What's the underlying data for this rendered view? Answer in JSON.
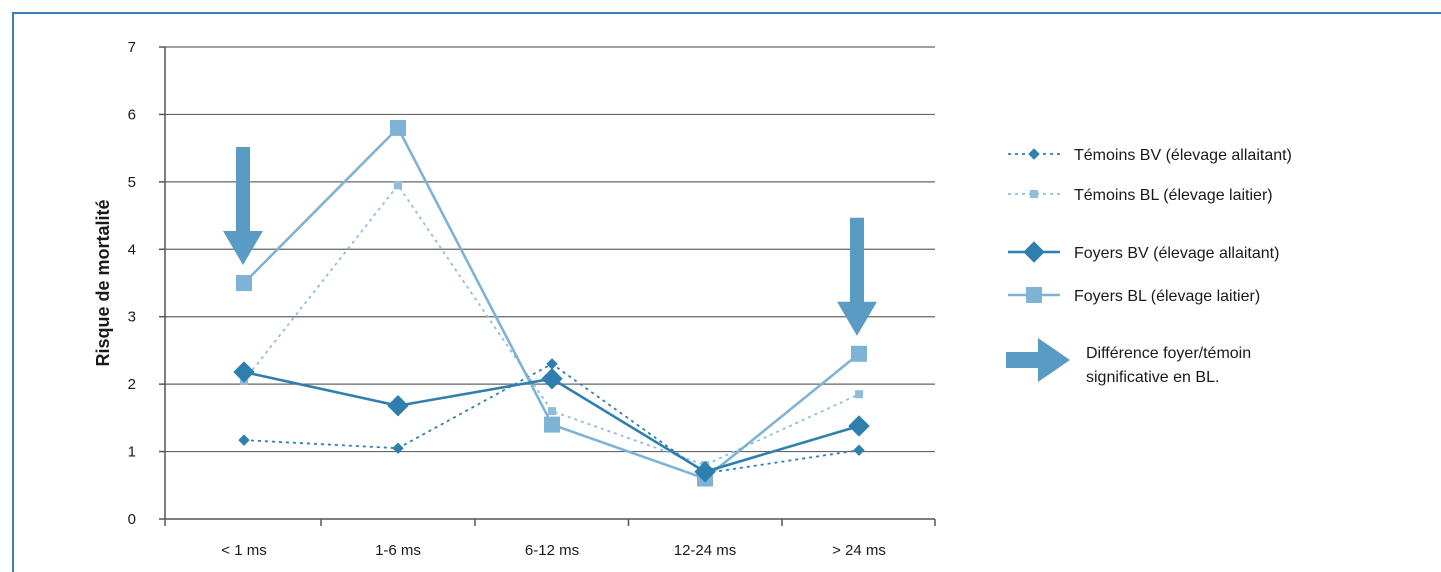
{
  "chart_data": {
    "type": "line",
    "categories": [
      "< 1 ms",
      "1-6 ms",
      "6-12 ms",
      "12-24 ms",
      "> 24 ms"
    ],
    "ylabel": "Risque de mortalité",
    "xlabel": "",
    "ylim": [
      0,
      7
    ],
    "yticks": [
      0,
      1,
      2,
      3,
      4,
      5,
      6,
      7
    ],
    "grid": "horizontal",
    "legend_position": "right",
    "series": [
      {
        "name": "Témoins BV (élevage allaitant)",
        "values": [
          1.17,
          1.05,
          2.3,
          0.68,
          1.02
        ],
        "marker": "diamond",
        "line": "dotted",
        "size": "small",
        "color": "#2f7fae"
      },
      {
        "name": "Témoins BL (élevage laitier)",
        "values": [
          2.05,
          4.95,
          1.6,
          0.8,
          1.85
        ],
        "marker": "square",
        "line": "dotted",
        "size": "small",
        "color": "#8fbedc"
      },
      {
        "name": "Foyers BV (élevage allaitant)",
        "values": [
          2.18,
          1.68,
          2.08,
          0.7,
          1.38
        ],
        "marker": "diamond",
        "line": "solid",
        "size": "large",
        "color": "#2f7fae"
      },
      {
        "name": "Foyers BL (élevage laitier)",
        "values": [
          3.5,
          5.8,
          1.4,
          0.6,
          2.45
        ],
        "marker": "square",
        "line": "solid",
        "size": "large",
        "color": "#7fb3d5"
      }
    ],
    "annotations": [
      {
        "type": "arrow-down",
        "category": "< 1 ms"
      },
      {
        "type": "arrow-down",
        "category": "> 24 ms"
      }
    ],
    "legend_note": "Différence foyer/témoin significative en BL.",
    "legend_note_lines": [
      "Différence foyer/témoin",
      "significative en BL."
    ]
  },
  "colors": {
    "frame": "#3d7fb0",
    "axis": "#555555",
    "grid": "#666666",
    "arrow": "#5a9bc4"
  }
}
